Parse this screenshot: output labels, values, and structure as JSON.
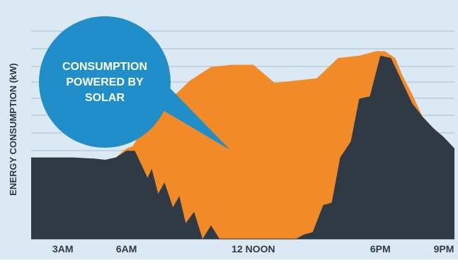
{
  "chart_data": {
    "type": "area",
    "title": "",
    "xlabel": "",
    "ylabel": "ENERGY CONSUMPTION (kW)",
    "x_unit": "hour of day",
    "xlim": [
      1.5,
      21.5
    ],
    "ylim": [
      0,
      10
    ],
    "x_ticks": [
      {
        "x": 3,
        "label": "3AM"
      },
      {
        "x": 6,
        "label": "6AM"
      },
      {
        "x": 12,
        "label": "12 NOON"
      },
      {
        "x": 18,
        "label": "6PM"
      },
      {
        "x": 21,
        "label": "9PM"
      }
    ],
    "callout": "CONSUMPTION POWERED BY SOLAR",
    "grid": true,
    "colors": {
      "background": "#dbe9f5",
      "grid": "#ffffff",
      "grid_major": "#9aaebf",
      "grid_line": "#b9ccdc",
      "consumption": "#2f3a44",
      "solar": "#f28a27",
      "callout": "#1f8ec9",
      "callout_text": "#ffffff",
      "axis_text": "#2f3a44"
    },
    "series": [
      {
        "key": "total",
        "x": [
          1.5,
          2.5,
          3.5,
          4.5,
          5.0,
          5.5,
          6.0,
          6.3,
          7.0,
          8.0,
          9.0,
          10.0,
          11.0,
          12.0,
          13.0,
          14.0,
          15.0,
          16.0,
          17.0,
          17.8,
          18.2,
          18.7,
          19.0,
          19.5,
          20.0,
          20.5,
          21.0,
          21.5
        ],
        "values": [
          3.6,
          3.6,
          3.6,
          3.55,
          3.5,
          3.6,
          4.0,
          4.1,
          5.2,
          6.1,
          7.0,
          7.6,
          7.7,
          7.7,
          6.9,
          7.0,
          7.1,
          8.0,
          8.1,
          8.3,
          8.3,
          8.0,
          7.3,
          6.4,
          5.4,
          4.9,
          4.5,
          4.0
        ]
      },
      {
        "key": "grid",
        "x": [
          1.5,
          2.5,
          3.5,
          4.5,
          5.0,
          5.5,
          6.0,
          6.4,
          7.0,
          7.2,
          7.5,
          7.8,
          8.2,
          8.5,
          8.8,
          9.2,
          9.6,
          10.0,
          10.4,
          10.9,
          11.5,
          12.0,
          12.5,
          13.0,
          13.5,
          14.0,
          14.4,
          14.8,
          15.3,
          15.7,
          16.1,
          16.6,
          17.0,
          17.5,
          18.0,
          18.5,
          19.0,
          19.5,
          20.0,
          20.5,
          21.0,
          21.5
        ],
        "values": [
          3.6,
          3.6,
          3.6,
          3.55,
          3.5,
          3.6,
          3.9,
          3.9,
          2.7,
          3.1,
          2.0,
          2.5,
          1.4,
          1.9,
          0.7,
          1.2,
          0.0,
          0.6,
          0.0,
          0.0,
          0.0,
          0.0,
          0.0,
          0.0,
          0.0,
          0.0,
          0.2,
          0.3,
          1.5,
          1.6,
          3.6,
          4.3,
          6.2,
          6.3,
          8.1,
          8.0,
          7.0,
          6.0,
          5.4,
          4.9,
          4.5,
          4.0
        ]
      }
    ]
  }
}
